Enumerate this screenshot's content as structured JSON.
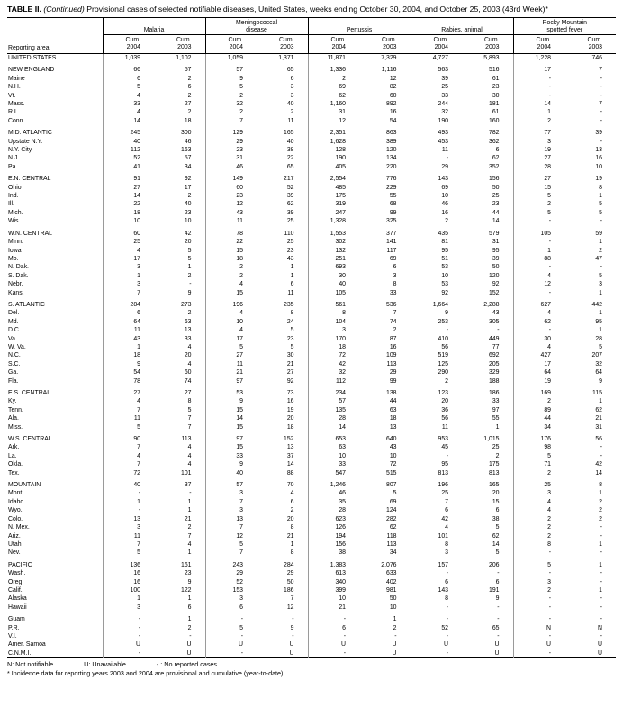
{
  "title": {
    "label": "TABLE II.",
    "continued": "(Continued)",
    "rest": "Provisional cases of selected notifiable diseases, United States, weeks ending October 30, 2004, and October 25, 2003 (43rd Week)*"
  },
  "table": {
    "reporting_area_header": "Reporting area",
    "col_groups": [
      {
        "label": "Malaria"
      },
      {
        "label": "Meningococcal\ndisease"
      },
      {
        "label": "Pertussis"
      },
      {
        "label": "Rabies, animal"
      },
      {
        "label": "Rocky Mountain\nspotted fever"
      }
    ],
    "sub_headers": [
      "Cum.\n2004",
      "Cum.\n2003"
    ],
    "rows": [
      {
        "area": "UNITED STATES",
        "section": true,
        "values": [
          "1,039",
          "1,102",
          "1,059",
          "1,371",
          "11,871",
          "7,329",
          "4,727",
          "5,893",
          "1,228",
          "746"
        ]
      },
      {
        "area": "NEW ENGLAND",
        "section": true,
        "gap": true,
        "values": [
          "66",
          "57",
          "57",
          "65",
          "1,336",
          "1,116",
          "563",
          "516",
          "17",
          "7"
        ]
      },
      {
        "area": "Maine",
        "values": [
          "6",
          "2",
          "9",
          "6",
          "2",
          "12",
          "39",
          "61",
          "-",
          "-"
        ]
      },
      {
        "area": "N.H.",
        "values": [
          "5",
          "6",
          "5",
          "3",
          "69",
          "82",
          "25",
          "23",
          "-",
          "-"
        ]
      },
      {
        "area": "Vt.",
        "values": [
          "4",
          "2",
          "2",
          "3",
          "62",
          "60",
          "33",
          "30",
          "-",
          "-"
        ]
      },
      {
        "area": "Mass.",
        "values": [
          "33",
          "27",
          "32",
          "40",
          "1,160",
          "892",
          "244",
          "181",
          "14",
          "7"
        ]
      },
      {
        "area": "R.I.",
        "values": [
          "4",
          "2",
          "2",
          "2",
          "31",
          "16",
          "32",
          "61",
          "1",
          "-"
        ]
      },
      {
        "area": "Conn.",
        "values": [
          "14",
          "18",
          "7",
          "11",
          "12",
          "54",
          "190",
          "160",
          "2",
          "-"
        ]
      },
      {
        "area": "MID. ATLANTIC",
        "section": true,
        "gap": true,
        "values": [
          "245",
          "300",
          "129",
          "165",
          "2,351",
          "863",
          "493",
          "782",
          "77",
          "39"
        ]
      },
      {
        "area": "Upstate N.Y.",
        "values": [
          "40",
          "46",
          "29",
          "40",
          "1,628",
          "389",
          "453",
          "362",
          "3",
          "-"
        ]
      },
      {
        "area": "N.Y. City",
        "values": [
          "112",
          "163",
          "23",
          "38",
          "128",
          "120",
          "11",
          "6",
          "19",
          "13"
        ]
      },
      {
        "area": "N.J.",
        "values": [
          "52",
          "57",
          "31",
          "22",
          "190",
          "134",
          "-",
          "62",
          "27",
          "16"
        ]
      },
      {
        "area": "Pa.",
        "values": [
          "41",
          "34",
          "46",
          "65",
          "405",
          "220",
          "29",
          "352",
          "28",
          "10"
        ]
      },
      {
        "area": "E.N. CENTRAL",
        "section": true,
        "gap": true,
        "values": [
          "91",
          "92",
          "149",
          "217",
          "2,554",
          "776",
          "143",
          "156",
          "27",
          "19"
        ]
      },
      {
        "area": "Ohio",
        "values": [
          "27",
          "17",
          "60",
          "52",
          "485",
          "229",
          "69",
          "50",
          "15",
          "8"
        ]
      },
      {
        "area": "Ind.",
        "values": [
          "14",
          "2",
          "23",
          "39",
          "175",
          "55",
          "10",
          "25",
          "5",
          "1"
        ]
      },
      {
        "area": "Ill.",
        "values": [
          "22",
          "40",
          "12",
          "62",
          "319",
          "68",
          "46",
          "23",
          "2",
          "5"
        ]
      },
      {
        "area": "Mich.",
        "values": [
          "18",
          "23",
          "43",
          "39",
          "247",
          "99",
          "16",
          "44",
          "5",
          "5"
        ]
      },
      {
        "area": "Wis.",
        "values": [
          "10",
          "10",
          "11",
          "25",
          "1,328",
          "325",
          "2",
          "14",
          "-",
          "-"
        ]
      },
      {
        "area": "W.N. CENTRAL",
        "section": true,
        "gap": true,
        "values": [
          "60",
          "42",
          "78",
          "110",
          "1,553",
          "377",
          "435",
          "579",
          "105",
          "59"
        ]
      },
      {
        "area": "Minn.",
        "values": [
          "25",
          "20",
          "22",
          "25",
          "302",
          "141",
          "81",
          "31",
          "-",
          "1"
        ]
      },
      {
        "area": "Iowa",
        "values": [
          "4",
          "5",
          "15",
          "23",
          "132",
          "117",
          "95",
          "95",
          "1",
          "2"
        ]
      },
      {
        "area": "Mo.",
        "values": [
          "17",
          "5",
          "18",
          "43",
          "251",
          "69",
          "51",
          "39",
          "88",
          "47"
        ]
      },
      {
        "area": "N. Dak.",
        "values": [
          "3",
          "1",
          "2",
          "1",
          "693",
          "6",
          "53",
          "50",
          "-",
          "-"
        ]
      },
      {
        "area": "S. Dak.",
        "values": [
          "1",
          "2",
          "2",
          "1",
          "30",
          "3",
          "10",
          "120",
          "4",
          "5"
        ]
      },
      {
        "area": "Nebr.",
        "values": [
          "3",
          "-",
          "4",
          "6",
          "40",
          "8",
          "53",
          "92",
          "12",
          "3"
        ]
      },
      {
        "area": "Kans.",
        "values": [
          "7",
          "9",
          "15",
          "11",
          "105",
          "33",
          "92",
          "152",
          "-",
          "1"
        ]
      },
      {
        "area": "S. ATLANTIC",
        "section": true,
        "gap": true,
        "values": [
          "284",
          "273",
          "196",
          "235",
          "561",
          "536",
          "1,664",
          "2,288",
          "627",
          "442"
        ]
      },
      {
        "area": "Del.",
        "values": [
          "6",
          "2",
          "4",
          "8",
          "8",
          "7",
          "9",
          "43",
          "4",
          "1"
        ]
      },
      {
        "area": "Md.",
        "values": [
          "64",
          "63",
          "10",
          "24",
          "104",
          "74",
          "253",
          "305",
          "62",
          "95"
        ]
      },
      {
        "area": "D.C.",
        "values": [
          "11",
          "13",
          "4",
          "5",
          "3",
          "2",
          "-",
          "-",
          "-",
          "1"
        ]
      },
      {
        "area": "Va.",
        "values": [
          "43",
          "33",
          "17",
          "23",
          "170",
          "87",
          "410",
          "449",
          "30",
          "28"
        ]
      },
      {
        "area": "W. Va.",
        "values": [
          "1",
          "4",
          "5",
          "5",
          "18",
          "16",
          "56",
          "77",
          "4",
          "5"
        ]
      },
      {
        "area": "N.C.",
        "values": [
          "18",
          "20",
          "27",
          "30",
          "72",
          "109",
          "519",
          "692",
          "427",
          "207"
        ]
      },
      {
        "area": "S.C.",
        "values": [
          "9",
          "4",
          "11",
          "21",
          "42",
          "113",
          "125",
          "205",
          "17",
          "32"
        ]
      },
      {
        "area": "Ga.",
        "values": [
          "54",
          "60",
          "21",
          "27",
          "32",
          "29",
          "290",
          "329",
          "64",
          "64"
        ]
      },
      {
        "area": "Fla.",
        "values": [
          "78",
          "74",
          "97",
          "92",
          "112",
          "99",
          "2",
          "188",
          "19",
          "9"
        ]
      },
      {
        "area": "E.S. CENTRAL",
        "section": true,
        "gap": true,
        "values": [
          "27",
          "27",
          "53",
          "73",
          "234",
          "138",
          "123",
          "186",
          "169",
          "115"
        ]
      },
      {
        "area": "Ky.",
        "values": [
          "4",
          "8",
          "9",
          "16",
          "57",
          "44",
          "20",
          "33",
          "2",
          "1"
        ]
      },
      {
        "area": "Tenn.",
        "values": [
          "7",
          "5",
          "15",
          "19",
          "135",
          "63",
          "36",
          "97",
          "89",
          "62"
        ]
      },
      {
        "area": "Ala.",
        "values": [
          "11",
          "7",
          "14",
          "20",
          "28",
          "18",
          "56",
          "55",
          "44",
          "21"
        ]
      },
      {
        "area": "Miss.",
        "values": [
          "5",
          "7",
          "15",
          "18",
          "14",
          "13",
          "11",
          "1",
          "34",
          "31"
        ]
      },
      {
        "area": "W.S. CENTRAL",
        "section": true,
        "gap": true,
        "values": [
          "90",
          "113",
          "97",
          "152",
          "653",
          "640",
          "953",
          "1,015",
          "176",
          "56"
        ]
      },
      {
        "area": "Ark.",
        "values": [
          "7",
          "4",
          "15",
          "13",
          "63",
          "43",
          "45",
          "25",
          "98",
          "-"
        ]
      },
      {
        "area": "La.",
        "values": [
          "4",
          "4",
          "33",
          "37",
          "10",
          "10",
          "-",
          "2",
          "5",
          "-"
        ]
      },
      {
        "area": "Okla.",
        "values": [
          "7",
          "4",
          "9",
          "14",
          "33",
          "72",
          "95",
          "175",
          "71",
          "42"
        ]
      },
      {
        "area": "Tex.",
        "values": [
          "72",
          "101",
          "40",
          "88",
          "547",
          "515",
          "813",
          "813",
          "2",
          "14"
        ]
      },
      {
        "area": "MOUNTAIN",
        "section": true,
        "gap": true,
        "values": [
          "40",
          "37",
          "57",
          "70",
          "1,246",
          "807",
          "196",
          "165",
          "25",
          "8"
        ]
      },
      {
        "area": "Mont.",
        "values": [
          "-",
          "-",
          "3",
          "4",
          "46",
          "5",
          "25",
          "20",
          "3",
          "1"
        ]
      },
      {
        "area": "Idaho",
        "values": [
          "1",
          "1",
          "7",
          "6",
          "35",
          "69",
          "7",
          "15",
          "4",
          "2"
        ]
      },
      {
        "area": "Wyo.",
        "values": [
          "-",
          "1",
          "3",
          "2",
          "28",
          "124",
          "6",
          "6",
          "4",
          "2"
        ]
      },
      {
        "area": "Colo.",
        "values": [
          "13",
          "21",
          "13",
          "20",
          "623",
          "282",
          "42",
          "38",
          "2",
          "2"
        ]
      },
      {
        "area": "N. Mex.",
        "values": [
          "3",
          "2",
          "7",
          "8",
          "126",
          "62",
          "4",
          "5",
          "2",
          "-"
        ]
      },
      {
        "area": "Ariz.",
        "values": [
          "11",
          "7",
          "12",
          "21",
          "194",
          "118",
          "101",
          "62",
          "2",
          "-"
        ]
      },
      {
        "area": "Utah",
        "values": [
          "7",
          "4",
          "5",
          "1",
          "156",
          "113",
          "8",
          "14",
          "8",
          "1"
        ]
      },
      {
        "area": "Nev.",
        "values": [
          "5",
          "1",
          "7",
          "8",
          "38",
          "34",
          "3",
          "5",
          "-",
          "-"
        ]
      },
      {
        "area": "PACIFIC",
        "section": true,
        "gap": true,
        "values": [
          "136",
          "161",
          "243",
          "284",
          "1,383",
          "2,076",
          "157",
          "206",
          "5",
          "1"
        ]
      },
      {
        "area": "Wash.",
        "values": [
          "16",
          "23",
          "29",
          "29",
          "613",
          "633",
          "-",
          "-",
          "-",
          "-"
        ]
      },
      {
        "area": "Oreg.",
        "values": [
          "16",
          "9",
          "52",
          "50",
          "340",
          "402",
          "6",
          "6",
          "3",
          "-"
        ]
      },
      {
        "area": "Calif.",
        "values": [
          "100",
          "122",
          "153",
          "186",
          "399",
          "981",
          "143",
          "191",
          "2",
          "1"
        ]
      },
      {
        "area": "Alaska",
        "values": [
          "1",
          "1",
          "3",
          "7",
          "10",
          "50",
          "8",
          "9",
          "-",
          "-"
        ]
      },
      {
        "area": "Hawaii",
        "values": [
          "3",
          "6",
          "6",
          "12",
          "21",
          "10",
          "-",
          "-",
          "-",
          "-"
        ]
      },
      {
        "area": "Guam",
        "gap": true,
        "values": [
          "-",
          "1",
          "-",
          "-",
          "-",
          "1",
          "-",
          "-",
          "-",
          "-"
        ]
      },
      {
        "area": "P.R.",
        "values": [
          "-",
          "2",
          "5",
          "9",
          "6",
          "2",
          "52",
          "65",
          "N",
          "N"
        ]
      },
      {
        "area": "V.I.",
        "values": [
          "-",
          "-",
          "-",
          "-",
          "-",
          "-",
          "-",
          "-",
          "-",
          "-"
        ]
      },
      {
        "area": "Amer. Samoa",
        "values": [
          "U",
          "U",
          "U",
          "U",
          "U",
          "U",
          "U",
          "U",
          "U",
          "U"
        ]
      },
      {
        "area": "C.N.M.I.",
        "values": [
          "-",
          "U",
          "-",
          "U",
          "-",
          "U",
          "-",
          "U",
          "-",
          "U"
        ]
      }
    ]
  },
  "footnotes": {
    "legend": [
      "N: Not notifiable.",
      "U: Unavailable.",
      "- : No reported cases."
    ],
    "note": "* Incidence data for reporting years 2003 and 2004 are provisional and cumulative (year-to-date)."
  }
}
